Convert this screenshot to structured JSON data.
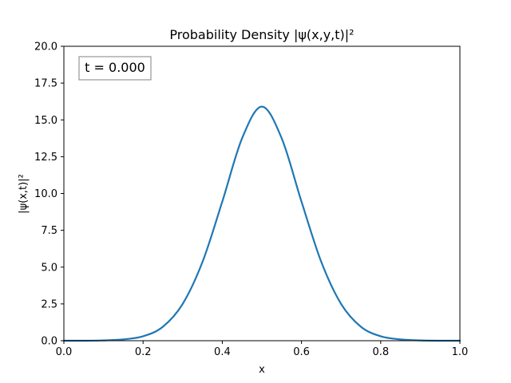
{
  "chart_data": {
    "type": "line",
    "title": "Probability Density |ψ(x,y,t)|²",
    "xlabel": "x",
    "ylabel": "|ψ(x,t)|²",
    "xlim": [
      0.0,
      1.0
    ],
    "ylim": [
      0.0,
      20.0
    ],
    "xticks": [
      0.0,
      0.2,
      0.4,
      0.6,
      0.8,
      1.0
    ],
    "xtick_labels": [
      "0.0",
      "0.2",
      "0.4",
      "0.6",
      "0.8",
      "1.0"
    ],
    "yticks": [
      0.0,
      2.5,
      5.0,
      7.5,
      10.0,
      12.5,
      15.0,
      17.5,
      20.0
    ],
    "ytick_labels": [
      "0.0",
      "2.5",
      "5.0",
      "7.5",
      "10.0",
      "12.5",
      "15.0",
      "17.5",
      "20.0"
    ],
    "grid": false,
    "annotation": {
      "text": "t = 0.000",
      "placement": "top-left"
    },
    "series": [
      {
        "color": "#1f77b4",
        "x": [
          0.0,
          0.05,
          0.1,
          0.15,
          0.2,
          0.25,
          0.3,
          0.35,
          0.4,
          0.45,
          0.5,
          0.55,
          0.6,
          0.65,
          0.7,
          0.75,
          0.8,
          0.85,
          0.9,
          0.95,
          1.0
        ],
        "y": [
          0.0,
          0.0,
          0.02,
          0.09,
          0.3,
          0.95,
          2.5,
          5.35,
          9.45,
          13.75,
          15.9,
          13.75,
          9.45,
          5.35,
          2.5,
          0.95,
          0.3,
          0.09,
          0.02,
          0.0,
          0.0
        ]
      }
    ]
  }
}
